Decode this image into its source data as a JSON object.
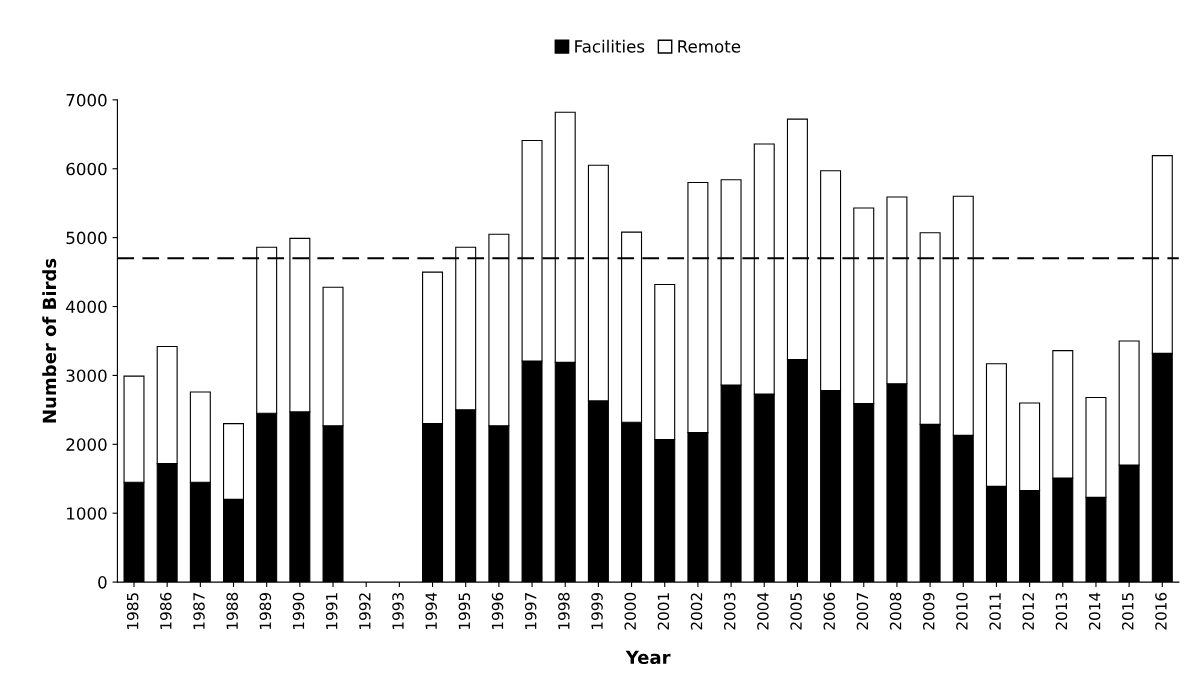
{
  "chart_data": {
    "type": "bar",
    "stacked": true,
    "xlabel": "Year",
    "ylabel": "Number of Birds",
    "categories": [
      "1985",
      "1986",
      "1987",
      "1988",
      "1989",
      "1990",
      "1991",
      "1992",
      "1993",
      "1994",
      "1995",
      "1996",
      "1997",
      "1998",
      "1999",
      "2000",
      "2001",
      "2002",
      "2003",
      "2004",
      "2005",
      "2006",
      "2007",
      "2008",
      "2009",
      "2010",
      "2011",
      "2012",
      "2013",
      "2014",
      "2015",
      "2016"
    ],
    "series": [
      {
        "name": "Facilities",
        "color": "#000000",
        "values": [
          1450,
          1720,
          1450,
          1200,
          2450,
          2470,
          2270,
          null,
          null,
          2300,
          2500,
          2270,
          3210,
          3190,
          2630,
          2320,
          2070,
          2170,
          2860,
          2730,
          3230,
          2780,
          2590,
          2880,
          2290,
          2130,
          1390,
          1330,
          1510,
          1230,
          1700,
          3320
        ]
      },
      {
        "name": "Remote",
        "color": "#ffffff",
        "values": [
          1540,
          1700,
          1310,
          1100,
          2410,
          2520,
          2010,
          null,
          null,
          2200,
          2360,
          2780,
          3200,
          3630,
          3420,
          2760,
          2250,
          3630,
          2980,
          3630,
          3490,
          3190,
          2840,
          2710,
          2780,
          3470,
          1780,
          1270,
          1850,
          1450,
          1800,
          2870
        ]
      }
    ],
    "ylim": [
      0,
      7000
    ],
    "yticks": [
      0,
      1000,
      2000,
      3000,
      4000,
      5000,
      6000,
      7000
    ],
    "ref_lines": [
      {
        "axis": "y",
        "value": 4700,
        "color": "#000000",
        "line_style": "dashed"
      }
    ],
    "grid": false,
    "legend": "top"
  }
}
